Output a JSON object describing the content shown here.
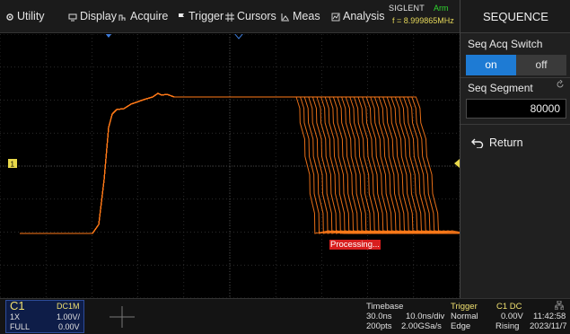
{
  "menu": [
    {
      "label": "Utility",
      "icon": "gear-icon"
    },
    {
      "label": "Display",
      "icon": "display-icon"
    },
    {
      "label": "Acquire",
      "icon": "acquire-icon"
    },
    {
      "label": "Trigger",
      "icon": "flag-icon"
    },
    {
      "label": "Cursors",
      "icon": "cursors-icon"
    },
    {
      "label": "Meas",
      "icon": "meas-icon"
    },
    {
      "label": "Analysis",
      "icon": "analysis-icon"
    }
  ],
  "brand": {
    "name": "SIGLENT",
    "state": "Arm",
    "frequency": "f = 8.999865MHz"
  },
  "panel": {
    "title": "SEQUENCE",
    "seq_acq_switch_label": "Seq Acq Switch",
    "switch_on": "on",
    "switch_off": "off",
    "switch_state": "on",
    "seq_segment_label": "Seq Segment",
    "seq_segment_value": "80000",
    "return_label": "Return"
  },
  "scope": {
    "channel_marker": "1",
    "processing_text": "Processing...",
    "trace_color": "#ff7a1a",
    "grid_color": "#3a3a3a",
    "trigger_marker_color": "#e8d84a",
    "position_marker_color": "#3d7bd8"
  },
  "channel": {
    "name": "C1",
    "coupling": "DC1M",
    "probe": "1X",
    "scale": "1.00V/",
    "bandwidth": "FULL",
    "offset": "0.00V"
  },
  "timebase": {
    "label": "Timebase",
    "delay": "30.0ns",
    "scale": "10.0ns/div",
    "points": "200pts",
    "sample_rate": "2.00GSa/s"
  },
  "trigger": {
    "label": "Trigger",
    "source": "C1 DC",
    "mode": "Normal",
    "level": "0.00V",
    "type": "Edge",
    "slope": "Rising"
  },
  "clock": {
    "time": "11:42:58",
    "date": "2023/11/7"
  }
}
